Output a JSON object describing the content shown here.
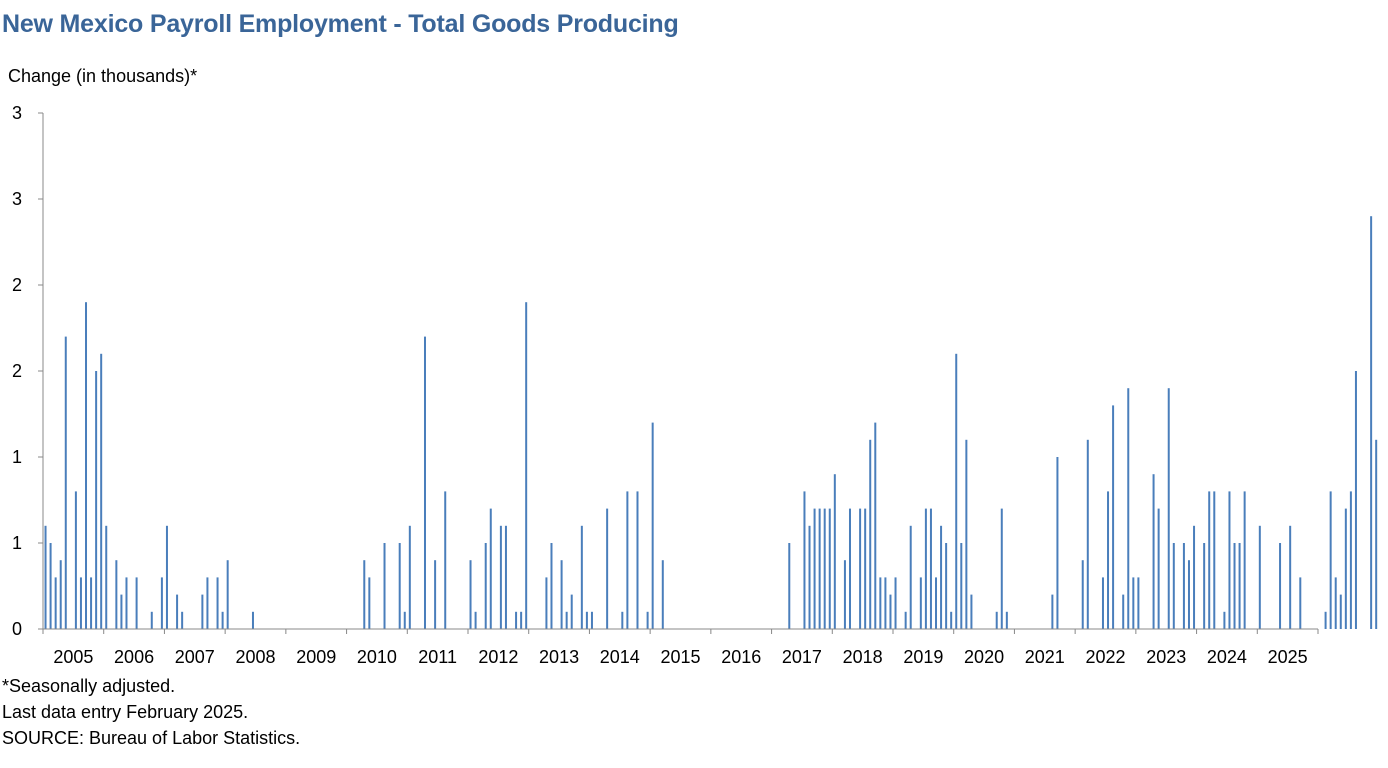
{
  "title": "New Mexico Payroll Employment - Total Goods Producing",
  "notes": [
    "*Seasonally adjusted.",
    "Last data entry February 2025.",
    "SOURCE: Bureau of Labor Statistics."
  ],
  "chart_data": {
    "type": "bar",
    "title": "New Mexico Payroll Employment - Total Goods Producing",
    "ylabel": "Change (in thousands)*",
    "xlabel": "",
    "ylim": [
      0,
      3
    ],
    "yticks": [
      {
        "value": 0,
        "label": "0"
      },
      {
        "value": 0.5,
        "label": "1"
      },
      {
        "value": 1.0,
        "label": "1"
      },
      {
        "value": 1.5,
        "label": "2"
      },
      {
        "value": 2.0,
        "label": "2"
      },
      {
        "value": 2.5,
        "label": "3"
      },
      {
        "value": 3.0,
        "label": "3"
      }
    ],
    "years": [
      "2005",
      "2006",
      "2007",
      "2008",
      "2009",
      "2010",
      "2011",
      "2012",
      "2013",
      "2014",
      "2015",
      "2016",
      "2017",
      "2018",
      "2019",
      "2020",
      "2021",
      "2022",
      "2023",
      "2024",
      "2025"
    ],
    "grid": false,
    "legend": "none",
    "bar_color": "#4a7ebb",
    "series": [
      {
        "values": [
          0.6,
          0.5,
          0.3,
          0.4,
          1.7,
          0,
          0.8,
          0.3,
          1.9,
          0.3,
          1.5,
          1.6,
          0.6,
          0,
          0.4,
          0.2,
          0.3,
          0,
          0.3,
          0,
          0,
          0.1,
          0,
          0.3,
          0.6,
          0,
          0.2,
          0.1,
          0,
          0,
          0,
          0.2,
          0.3,
          0,
          0.3,
          0.1,
          0.4,
          0,
          0,
          0,
          0,
          0.1,
          0,
          0,
          0,
          0,
          0,
          0,
          0,
          0,
          0,
          0,
          0,
          0,
          0,
          0,
          0,
          0,
          0,
          0,
          0,
          0,
          0,
          0.4,
          0.3,
          0,
          0,
          0.5,
          0,
          0,
          0.5,
          0.1,
          0.6,
          0,
          0,
          1.7,
          0,
          0.4,
          0,
          0.8,
          0,
          0,
          0,
          0,
          0.4,
          0.1,
          0,
          0.5,
          0.7,
          0,
          0.6,
          0.6,
          0,
          0.1,
          0.1,
          1.9,
          0,
          0,
          0,
          0.3,
          0.5,
          0,
          0.4,
          0.1,
          0.2,
          0,
          0.6,
          0.1,
          0.1,
          0,
          0,
          0.7,
          0,
          0,
          0.1,
          0.8,
          0,
          0.8,
          0,
          0.1,
          1.2,
          0,
          0.4,
          0,
          0,
          0,
          0,
          0,
          0,
          0,
          0,
          0,
          0,
          0,
          0,
          0,
          0,
          0,
          0,
          0,
          0,
          0,
          0,
          0,
          0,
          0,
          0,
          0.5,
          0,
          0,
          0.8,
          0.6,
          0.7,
          0.7,
          0.7,
          0.7,
          0.9,
          0,
          0.4,
          0.7,
          0,
          0.7,
          0.7,
          1.1,
          1.2,
          0.3,
          0.3,
          0.2,
          0.3,
          0,
          0.1,
          0.6,
          0,
          0.3,
          0.7,
          0.7,
          0.3,
          0.6,
          0.5,
          0.1,
          1.6,
          0.5,
          1.1,
          0.2,
          0,
          0,
          0,
          0,
          0.1,
          0.7,
          0.1,
          0,
          0,
          0,
          0,
          0,
          0,
          0,
          0,
          0.2,
          1.0,
          0,
          0,
          0,
          0,
          0.4,
          1.1,
          0,
          0,
          0.3,
          0.8,
          1.3,
          0,
          0.2,
          1.4,
          0.3,
          0.3,
          0,
          0,
          0.9,
          0.7,
          0,
          1.4,
          0.5,
          0,
          0.5,
          0.4,
          0.6,
          0,
          0.5,
          0.8,
          0.8,
          0,
          0.1,
          0.8,
          0.5,
          0.5,
          0.8,
          0,
          0,
          0.6,
          0,
          0,
          0,
          0.5,
          0,
          0.6,
          0,
          0.3,
          0,
          0,
          0,
          0,
          0.1,
          0.8,
          0.3,
          0.2,
          0.7,
          0.8,
          1.5,
          0,
          0,
          2.4,
          1.1
        ]
      }
    ]
  }
}
